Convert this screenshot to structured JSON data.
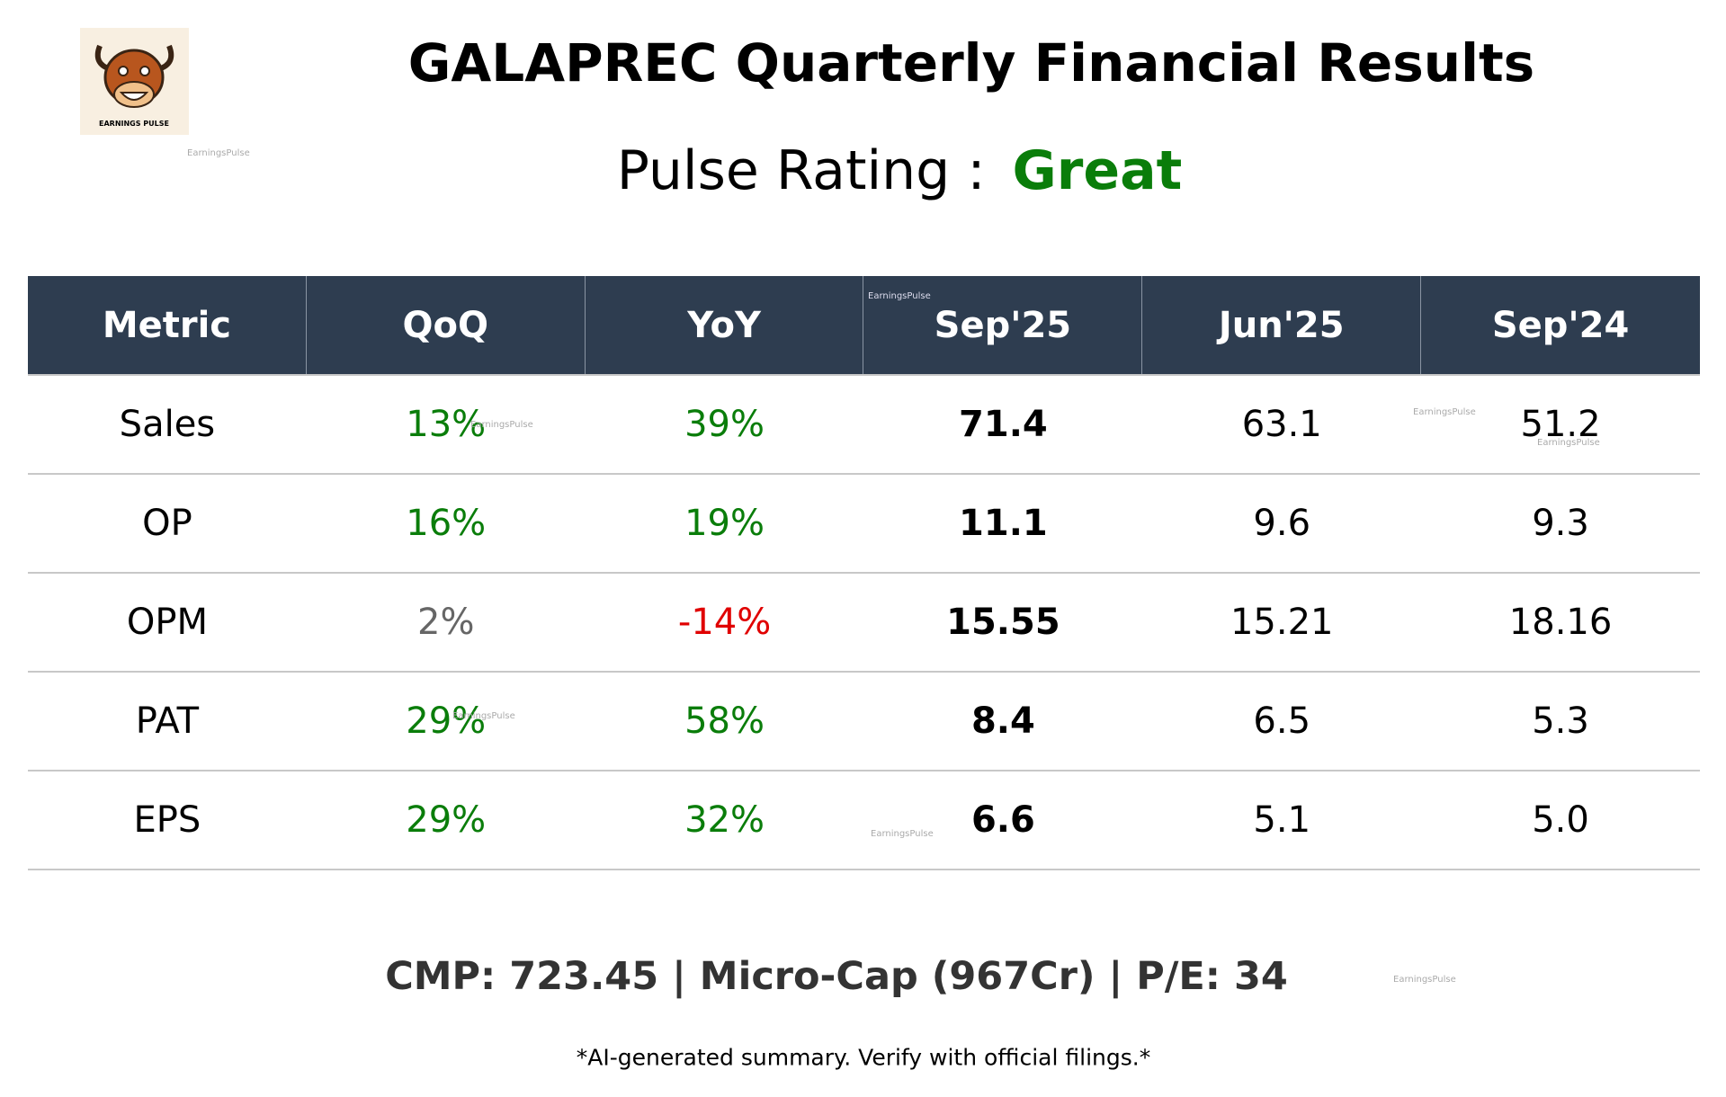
{
  "header": {
    "title": "GALAPREC Quarterly Financial Results",
    "rating_label": "Pulse Rating :",
    "rating": "Great",
    "rating_color": "#0a7d0a"
  },
  "logo": {
    "text": "EARNINGS PULSE"
  },
  "watermark": "EarningsPulse",
  "table": {
    "columns": [
      "Metric",
      "QoQ",
      "YoY",
      "Sep'25",
      "Jun'25",
      "Sep'24"
    ],
    "rows": [
      [
        "Sales",
        "13%",
        "39%",
        "71.4",
        "63.1",
        "51.2"
      ],
      [
        "OP",
        "16%",
        "19%",
        "11.1",
        "9.6",
        "9.3"
      ],
      [
        "OPM",
        "2%",
        "-14%",
        "15.55",
        "15.21",
        "18.16"
      ],
      [
        "PAT",
        "29%",
        "58%",
        "8.4",
        "6.5",
        "5.3"
      ],
      [
        "EPS",
        "29%",
        "32%",
        "6.6",
        "5.1",
        "5.0"
      ]
    ],
    "change_colors": [
      [
        "#0a7d0a",
        "#0a7d0a"
      ],
      [
        "#0a7d0a",
        "#0a7d0a"
      ],
      [
        "#666666",
        "#e00000"
      ],
      [
        "#0a7d0a",
        "#0a7d0a"
      ],
      [
        "#0a7d0a",
        "#0a7d0a"
      ]
    ]
  },
  "footer": {
    "summary": "CMP: 723.45 | Micro-Cap (967Cr) | P/E: 34",
    "note": "*AI-generated summary. Verify with official filings.*"
  }
}
